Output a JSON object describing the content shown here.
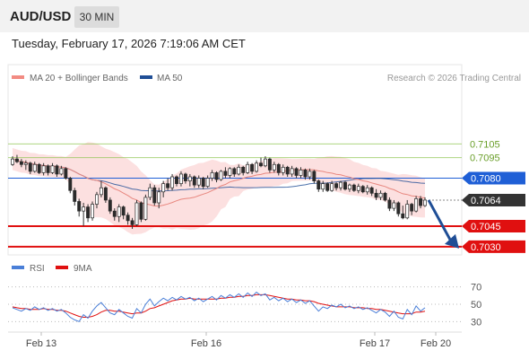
{
  "header": {
    "symbol": "AUD/USD",
    "timeframe": "30 MIN"
  },
  "timestamp": "Tuesday, February 17, 2026 7:19:06 AM CET",
  "legend": {
    "ma20": {
      "label": "MA 20 + Bollinger Bands",
      "color": "#f28b82"
    },
    "ma50": {
      "label": "MA 50",
      "color": "#1f4e96"
    },
    "credit": "Research © 2026 Trading Central"
  },
  "chart_data": {
    "type": "candlestick",
    "price_range": [
      0.7024,
      0.7138
    ],
    "x_axis": {
      "labels": [
        "Feb 13",
        "Feb 16",
        "Feb 17",
        "Feb 20"
      ]
    },
    "levels": [
      {
        "value": 0.7105,
        "label": "0.7105",
        "kind": "resistance",
        "color": "#8bc34a"
      },
      {
        "value": 0.7095,
        "label": "0.7095",
        "kind": "resistance",
        "color": "#8bc34a"
      },
      {
        "value": 0.708,
        "label": "0.7080",
        "kind": "pivot",
        "color": "#1f5fd6"
      },
      {
        "value": 0.7064,
        "label": "0.7064",
        "kind": "last",
        "color": "#333333"
      },
      {
        "value": 0.7045,
        "label": "0.7045",
        "kind": "support",
        "color": "#e01010"
      },
      {
        "value": 0.703,
        "label": "0.7030",
        "kind": "support",
        "color": "#e01010"
      }
    ],
    "forecast": {
      "from": 0.7064,
      "to": 0.703,
      "color": "#1f4e96"
    },
    "candles": [
      [
        0.709,
        0.7096,
        0.7089,
        0.7094
      ],
      [
        0.7094,
        0.7097,
        0.7091,
        0.7092
      ],
      [
        0.7092,
        0.7094,
        0.7088,
        0.709
      ],
      [
        0.709,
        0.7093,
        0.7086,
        0.7091
      ],
      [
        0.7091,
        0.7092,
        0.7083,
        0.7085
      ],
      [
        0.7085,
        0.7092,
        0.7084,
        0.709
      ],
      [
        0.709,
        0.7091,
        0.7083,
        0.7084
      ],
      [
        0.7084,
        0.7091,
        0.7082,
        0.7089
      ],
      [
        0.7089,
        0.709,
        0.7082,
        0.7084
      ],
      [
        0.7084,
        0.7091,
        0.7083,
        0.7089
      ],
      [
        0.7089,
        0.709,
        0.7081,
        0.7083
      ],
      [
        0.7083,
        0.7089,
        0.7082,
        0.7087
      ],
      [
        0.7087,
        0.7088,
        0.7079,
        0.708
      ],
      [
        0.708,
        0.7081,
        0.7069,
        0.7071
      ],
      [
        0.7071,
        0.7073,
        0.706,
        0.7063
      ],
      [
        0.7063,
        0.7065,
        0.7052,
        0.7056
      ],
      [
        0.7056,
        0.7062,
        0.7045,
        0.7059
      ],
      [
        0.7059,
        0.7061,
        0.7048,
        0.7051
      ],
      [
        0.7051,
        0.7063,
        0.7049,
        0.7061
      ],
      [
        0.7061,
        0.707,
        0.7058,
        0.7068
      ],
      [
        0.7068,
        0.7078,
        0.7066,
        0.7073
      ],
      [
        0.7073,
        0.7074,
        0.7062,
        0.7064
      ],
      [
        0.7064,
        0.7066,
        0.7054,
        0.7056
      ],
      [
        0.7056,
        0.7058,
        0.7049,
        0.7052
      ],
      [
        0.7052,
        0.7061,
        0.7048,
        0.7059
      ],
      [
        0.7059,
        0.706,
        0.705,
        0.7053
      ],
      [
        0.7053,
        0.7055,
        0.7046,
        0.7049
      ],
      [
        0.7049,
        0.7051,
        0.7043,
        0.7046
      ],
      [
        0.7046,
        0.7064,
        0.7045,
        0.7062
      ],
      [
        0.7062,
        0.7063,
        0.7048,
        0.705
      ],
      [
        0.705,
        0.7068,
        0.7049,
        0.7066
      ],
      [
        0.7066,
        0.7076,
        0.7064,
        0.7073
      ],
      [
        0.7073,
        0.7075,
        0.706,
        0.7062
      ],
      [
        0.7062,
        0.7073,
        0.7058,
        0.707
      ],
      [
        0.707,
        0.7078,
        0.7066,
        0.7076
      ],
      [
        0.7076,
        0.708,
        0.7071,
        0.7073
      ],
      [
        0.7073,
        0.7083,
        0.7071,
        0.7081
      ],
      [
        0.7081,
        0.7082,
        0.7074,
        0.7076
      ],
      [
        0.7076,
        0.7085,
        0.7074,
        0.7083
      ],
      [
        0.7083,
        0.7084,
        0.7076,
        0.7078
      ],
      [
        0.7078,
        0.7083,
        0.7074,
        0.7081
      ],
      [
        0.7081,
        0.7082,
        0.7073,
        0.7075
      ],
      [
        0.7075,
        0.7082,
        0.7073,
        0.708
      ],
      [
        0.708,
        0.7081,
        0.7072,
        0.7074
      ],
      [
        0.7074,
        0.7082,
        0.7073,
        0.708
      ],
      [
        0.708,
        0.7086,
        0.7078,
        0.7084
      ],
      [
        0.7084,
        0.7085,
        0.7077,
        0.7079
      ],
      [
        0.7079,
        0.7086,
        0.7078,
        0.7085
      ],
      [
        0.7085,
        0.7088,
        0.708,
        0.7082
      ],
      [
        0.7082,
        0.7088,
        0.708,
        0.7087
      ],
      [
        0.7087,
        0.7088,
        0.7081,
        0.7083
      ],
      [
        0.7083,
        0.709,
        0.7082,
        0.7088
      ],
      [
        0.7088,
        0.7089,
        0.7082,
        0.7084
      ],
      [
        0.7084,
        0.7092,
        0.7083,
        0.709
      ],
      [
        0.709,
        0.7091,
        0.7083,
        0.7085
      ],
      [
        0.7085,
        0.7093,
        0.7084,
        0.7091
      ],
      [
        0.7091,
        0.7095,
        0.7088,
        0.7089
      ],
      [
        0.7089,
        0.7096,
        0.7088,
        0.7094
      ],
      [
        0.7094,
        0.7095,
        0.7084,
        0.7086
      ],
      [
        0.7086,
        0.7092,
        0.7084,
        0.709
      ],
      [
        0.709,
        0.7091,
        0.7082,
        0.7084
      ],
      [
        0.7084,
        0.709,
        0.7082,
        0.7088
      ],
      [
        0.7088,
        0.7089,
        0.7081,
        0.7083
      ],
      [
        0.7083,
        0.7089,
        0.7081,
        0.7087
      ],
      [
        0.7087,
        0.7088,
        0.708,
        0.7082
      ],
      [
        0.7082,
        0.7088,
        0.708,
        0.7086
      ],
      [
        0.7086,
        0.7087,
        0.7079,
        0.7081
      ],
      [
        0.7081,
        0.7087,
        0.7079,
        0.7085
      ],
      [
        0.7085,
        0.7086,
        0.7076,
        0.7078
      ],
      [
        0.7078,
        0.7079,
        0.707,
        0.7072
      ],
      [
        0.7072,
        0.7078,
        0.707,
        0.7076
      ],
      [
        0.7076,
        0.7077,
        0.707,
        0.7071
      ],
      [
        0.7071,
        0.7078,
        0.707,
        0.7076
      ],
      [
        0.7076,
        0.7077,
        0.7071,
        0.7073
      ],
      [
        0.7073,
        0.7078,
        0.7071,
        0.7077
      ],
      [
        0.7077,
        0.7078,
        0.7071,
        0.7072
      ],
      [
        0.7072,
        0.7076,
        0.707,
        0.7075
      ],
      [
        0.7075,
        0.7076,
        0.707,
        0.7071
      ],
      [
        0.7071,
        0.7076,
        0.7069,
        0.7074
      ],
      [
        0.7074,
        0.7075,
        0.7069,
        0.707
      ],
      [
        0.707,
        0.7075,
        0.7068,
        0.7073
      ],
      [
        0.7073,
        0.7074,
        0.7067,
        0.7069
      ],
      [
        0.7069,
        0.7072,
        0.7064,
        0.7066
      ],
      [
        0.7066,
        0.7071,
        0.7064,
        0.7069
      ],
      [
        0.7069,
        0.707,
        0.7063,
        0.7064
      ],
      [
        0.7064,
        0.7066,
        0.7056,
        0.7058
      ],
      [
        0.7058,
        0.7064,
        0.7056,
        0.7062
      ],
      [
        0.7062,
        0.7063,
        0.7052,
        0.7054
      ],
      [
        0.7054,
        0.706,
        0.705,
        0.7051
      ],
      [
        0.7051,
        0.7064,
        0.705,
        0.7061
      ],
      [
        0.7061,
        0.7062,
        0.7053,
        0.7056
      ],
      [
        0.7056,
        0.7067,
        0.7055,
        0.7065
      ],
      [
        0.7065,
        0.7067,
        0.7058,
        0.706
      ],
      [
        0.706,
        0.7066,
        0.7059,
        0.7064
      ]
    ]
  },
  "rsi_panel": {
    "legend": {
      "rsi_label": "RSI",
      "rsi_color": "#4a7fd8",
      "ma_label": "9MA",
      "ma_color": "#e01010"
    },
    "levels": [
      70,
      50,
      30
    ],
    "range": [
      20,
      80
    ],
    "rsi": [
      46,
      44,
      42,
      45,
      43,
      47,
      44,
      46,
      43,
      45,
      42,
      44,
      40,
      35,
      32,
      30,
      38,
      34,
      42,
      48,
      52,
      46,
      40,
      38,
      44,
      40,
      36,
      34,
      45,
      40,
      50,
      56,
      48,
      53,
      57,
      54,
      58,
      55,
      59,
      56,
      58,
      54,
      57,
      53,
      56,
      59,
      55,
      60,
      57,
      61,
      58,
      62,
      58,
      63,
      59,
      64,
      60,
      62,
      55,
      58,
      54,
      57,
      53,
      56,
      52,
      55,
      51,
      54,
      48,
      42,
      47,
      45,
      49,
      47,
      50,
      46,
      48,
      45,
      47,
      44,
      46,
      43,
      40,
      44,
      41,
      36,
      42,
      35,
      33,
      44,
      38,
      48,
      42,
      46
    ],
    "rsi_ma": [
      47,
      46,
      45,
      45,
      44,
      44,
      44,
      45,
      44,
      44,
      43,
      43,
      42,
      40,
      38,
      36,
      35,
      35,
      36,
      38,
      41,
      43,
      43,
      42,
      42,
      41,
      40,
      39,
      40,
      40,
      42,
      45,
      46,
      48,
      50,
      52,
      54,
      55,
      56,
      56,
      57,
      56,
      56,
      56,
      56,
      56,
      56,
      57,
      57,
      58,
      58,
      59,
      59,
      60,
      60,
      61,
      61,
      61,
      60,
      59,
      58,
      57,
      56,
      56,
      55,
      55,
      54,
      54,
      53,
      51,
      50,
      49,
      48,
      47,
      47,
      47,
      47,
      46,
      46,
      46,
      45,
      45,
      44,
      44,
      43,
      42,
      41,
      40,
      39,
      39,
      39,
      41,
      41,
      42
    ]
  }
}
